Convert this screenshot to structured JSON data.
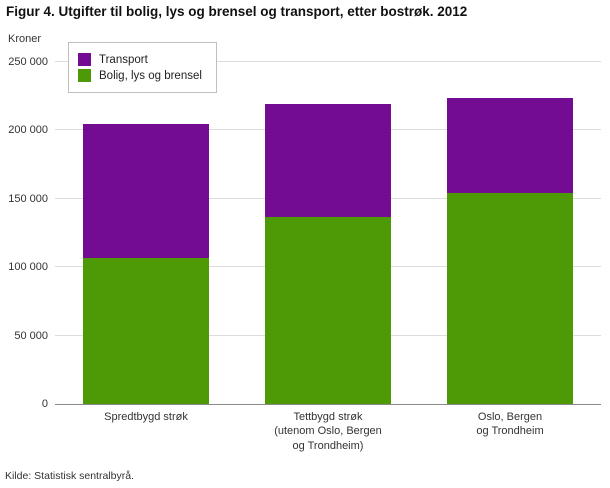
{
  "chart_data": {
    "type": "bar",
    "stacked": true,
    "title": "Figur 4. Utgifter til bolig, lys og brensel og transport, etter bostrøk. 2012",
    "ylabel": "Kroner",
    "ylim": [
      0,
      250000
    ],
    "grid": true,
    "yticks": [
      {
        "value": 0,
        "label": "0"
      },
      {
        "value": 50000,
        "label": "50 000"
      },
      {
        "value": 100000,
        "label": "100 000"
      },
      {
        "value": 150000,
        "label": "150 000"
      },
      {
        "value": 200000,
        "label": "200 000"
      },
      {
        "value": 250000,
        "label": "250 000"
      }
    ],
    "categories": [
      "Spredtbygd strøk",
      "Tettbygd strøk\n(utenom Oslo, Bergen\nog Trondheim)",
      "Oslo, Bergen\nog Trondheim"
    ],
    "series": [
      {
        "name": "Bolig, lys og brensel",
        "color": "#4e9a06",
        "values": [
          107000,
          137000,
          154000
        ]
      },
      {
        "name": "Transport",
        "color": "#730b93",
        "values": [
          98000,
          82000,
          70000
        ]
      }
    ],
    "legend": {
      "position": "top-left",
      "items": [
        {
          "label": "Transport",
          "color": "#730b93"
        },
        {
          "label": "Bolig, lys og brensel",
          "color": "#4e9a06"
        }
      ]
    },
    "source": "Kilde: Statistisk sentralbyrå."
  }
}
